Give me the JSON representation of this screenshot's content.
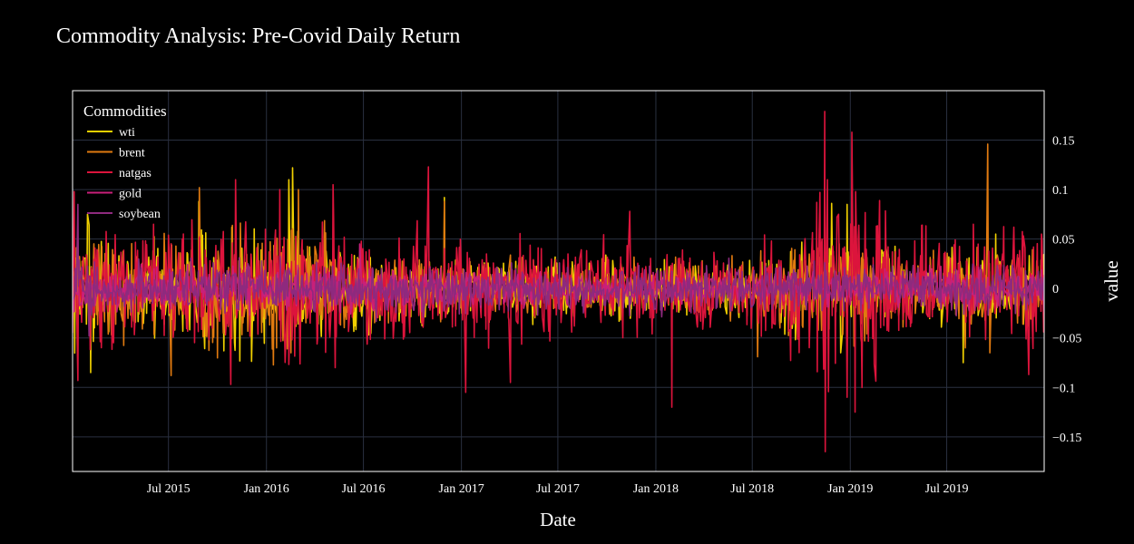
{
  "chart_data": {
    "type": "line",
    "title": "Commodity Analysis: Pre-Covid Daily Return",
    "xlabel": "Date",
    "ylabel": "value",
    "x_range": [
      "2015-01-02",
      "2019-12-31"
    ],
    "ylim": [
      -0.185,
      0.2
    ],
    "x_ticks": [
      {
        "date": "2015-07-01",
        "label": "Jul 2015"
      },
      {
        "date": "2016-01-01",
        "label": "Jan 2016"
      },
      {
        "date": "2016-07-01",
        "label": "Jul 2016"
      },
      {
        "date": "2017-01-01",
        "label": "Jan 2017"
      },
      {
        "date": "2017-07-01",
        "label": "Jul 2017"
      },
      {
        "date": "2018-01-01",
        "label": "Jan 2018"
      },
      {
        "date": "2018-07-01",
        "label": "Jul 2018"
      },
      {
        "date": "2019-01-01",
        "label": "Jan 2019"
      },
      {
        "date": "2019-07-01",
        "label": "Jul 2019"
      }
    ],
    "y_ticks": [
      {
        "value": 0.15,
        "label": "0.15"
      },
      {
        "value": 0.1,
        "label": "0.1"
      },
      {
        "value": 0.05,
        "label": "0.05"
      },
      {
        "value": 0,
        "label": "0"
      },
      {
        "value": -0.05,
        "label": "−0.05"
      },
      {
        "value": -0.1,
        "label": "−0.1"
      },
      {
        "value": -0.15,
        "label": "−0.15"
      }
    ],
    "y_axis_side": "right",
    "grid": true,
    "legend": {
      "title": "Commodities",
      "placement": "top-left"
    },
    "series": [
      {
        "name": "wti",
        "color": "#f0d000",
        "volatility": [
          {
            "date": "2015-01-01",
            "sd": 0.026
          },
          {
            "date": "2015-06-01",
            "sd": 0.02
          },
          {
            "date": "2015-09-01",
            "sd": 0.026
          },
          {
            "date": "2016-01-01",
            "sd": 0.03
          },
          {
            "date": "2016-04-01",
            "sd": 0.03
          },
          {
            "date": "2016-07-01",
            "sd": 0.02
          },
          {
            "date": "2017-01-01",
            "sd": 0.014
          },
          {
            "date": "2017-07-01",
            "sd": 0.014
          },
          {
            "date": "2018-01-01",
            "sd": 0.012
          },
          {
            "date": "2018-07-01",
            "sd": 0.012
          },
          {
            "date": "2018-10-15",
            "sd": 0.025
          },
          {
            "date": "2019-01-15",
            "sd": 0.025
          },
          {
            "date": "2019-04-01",
            "sd": 0.016
          },
          {
            "date": "2019-12-31",
            "sd": 0.016
          }
        ],
        "spikes": [
          {
            "date": "2015-08-27",
            "value": 0.088
          },
          {
            "date": "2015-01-30",
            "value": 0.075
          },
          {
            "date": "2015-02-05",
            "value": -0.085
          },
          {
            "date": "2016-02-12",
            "value": 0.11
          },
          {
            "date": "2016-02-19",
            "value": 0.122
          },
          {
            "date": "2016-02-10",
            "value": -0.058
          },
          {
            "date": "2016-11-30",
            "value": 0.092
          },
          {
            "date": "2018-11-27",
            "value": 0.086
          },
          {
            "date": "2018-12-26",
            "value": 0.085
          },
          {
            "date": "2019-01-04",
            "value": 0.062
          },
          {
            "date": "2019-10-01",
            "value": 0.055
          },
          {
            "date": "2019-08-01",
            "value": -0.075
          }
        ]
      },
      {
        "name": "brent",
        "color": "#e07a10",
        "volatility": [
          {
            "date": "2015-01-01",
            "sd": 0.026
          },
          {
            "date": "2015-06-01",
            "sd": 0.02
          },
          {
            "date": "2015-09-01",
            "sd": 0.026
          },
          {
            "date": "2016-01-01",
            "sd": 0.03
          },
          {
            "date": "2016-04-01",
            "sd": 0.028
          },
          {
            "date": "2016-07-01",
            "sd": 0.02
          },
          {
            "date": "2017-01-01",
            "sd": 0.013
          },
          {
            "date": "2017-07-01",
            "sd": 0.013
          },
          {
            "date": "2018-01-01",
            "sd": 0.012
          },
          {
            "date": "2018-07-01",
            "sd": 0.013
          },
          {
            "date": "2018-10-15",
            "sd": 0.024
          },
          {
            "date": "2019-01-15",
            "sd": 0.024
          },
          {
            "date": "2019-04-01",
            "sd": 0.016
          },
          {
            "date": "2019-12-31",
            "sd": 0.016
          }
        ],
        "spikes": [
          {
            "date": "2015-08-28",
            "value": 0.102
          },
          {
            "date": "2015-07-06",
            "value": -0.088
          },
          {
            "date": "2016-01-20",
            "value": -0.06
          },
          {
            "date": "2016-02-16",
            "value": -0.065
          },
          {
            "date": "2016-03-01",
            "value": 0.1
          },
          {
            "date": "2016-11-30",
            "value": 0.088
          },
          {
            "date": "2018-07-11",
            "value": -0.069
          },
          {
            "date": "2019-09-16",
            "value": 0.146
          },
          {
            "date": "2019-09-20",
            "value": -0.065
          },
          {
            "date": "2019-08-05",
            "value": -0.06
          }
        ]
      },
      {
        "name": "natgas",
        "color": "#dc143c",
        "volatility": [
          {
            "date": "2015-01-01",
            "sd": 0.03
          },
          {
            "date": "2015-06-01",
            "sd": 0.025
          },
          {
            "date": "2016-01-01",
            "sd": 0.03
          },
          {
            "date": "2016-07-01",
            "sd": 0.028
          },
          {
            "date": "2017-01-01",
            "sd": 0.025
          },
          {
            "date": "2017-07-01",
            "sd": 0.02
          },
          {
            "date": "2018-01-01",
            "sd": 0.022
          },
          {
            "date": "2018-07-01",
            "sd": 0.018
          },
          {
            "date": "2018-10-15",
            "sd": 0.045
          },
          {
            "date": "2019-01-15",
            "sd": 0.045
          },
          {
            "date": "2019-04-01",
            "sd": 0.025
          },
          {
            "date": "2019-12-31",
            "sd": 0.025
          }
        ],
        "spikes": [
          {
            "date": "2015-01-05",
            "value": 0.098
          },
          {
            "date": "2015-01-12",
            "value": -0.093
          },
          {
            "date": "2015-11-04",
            "value": 0.11
          },
          {
            "date": "2015-10-26",
            "value": -0.097
          },
          {
            "date": "2016-01-26",
            "value": 0.1
          },
          {
            "date": "2016-05-05",
            "value": 0.105
          },
          {
            "date": "2016-05-09",
            "value": -0.08
          },
          {
            "date": "2016-10-31",
            "value": 0.123
          },
          {
            "date": "2017-01-09",
            "value": -0.105
          },
          {
            "date": "2017-04-03",
            "value": -0.095
          },
          {
            "date": "2017-11-13",
            "value": 0.078
          },
          {
            "date": "2018-01-31",
            "value": -0.12
          },
          {
            "date": "2018-11-14",
            "value": 0.179
          },
          {
            "date": "2018-11-15",
            "value": -0.165
          },
          {
            "date": "2018-11-19",
            "value": 0.11
          },
          {
            "date": "2018-12-10",
            "value": 0.075
          },
          {
            "date": "2018-12-26",
            "value": -0.11
          },
          {
            "date": "2019-01-04",
            "value": 0.158
          },
          {
            "date": "2019-01-10",
            "value": -0.125
          },
          {
            "date": "2019-11-04",
            "value": 0.062
          },
          {
            "date": "2019-12-02",
            "value": -0.087
          },
          {
            "date": "2019-12-26",
            "value": 0.055
          }
        ]
      },
      {
        "name": "gold",
        "color": "#c8207a",
        "volatility": [
          {
            "date": "2015-01-01",
            "sd": 0.009
          },
          {
            "date": "2016-07-01",
            "sd": 0.011
          },
          {
            "date": "2017-07-01",
            "sd": 0.007
          },
          {
            "date": "2018-07-01",
            "sd": 0.006
          },
          {
            "date": "2019-06-01",
            "sd": 0.009
          },
          {
            "date": "2019-12-31",
            "sd": 0.008
          }
        ],
        "spikes": [
          {
            "date": "2016-06-24",
            "value": 0.045
          }
        ]
      },
      {
        "name": "soybean",
        "color": "#8e2a7e",
        "volatility": [
          {
            "date": "2015-01-01",
            "sd": 0.011
          },
          {
            "date": "2016-07-01",
            "sd": 0.013
          },
          {
            "date": "2017-07-01",
            "sd": 0.01
          },
          {
            "date": "2018-07-01",
            "sd": 0.012
          },
          {
            "date": "2019-12-31",
            "sd": 0.01
          }
        ],
        "spikes": [
          {
            "date": "2015-01-12",
            "value": 0.085
          },
          {
            "date": "2015-02-02",
            "value": -0.048
          }
        ]
      }
    ]
  }
}
